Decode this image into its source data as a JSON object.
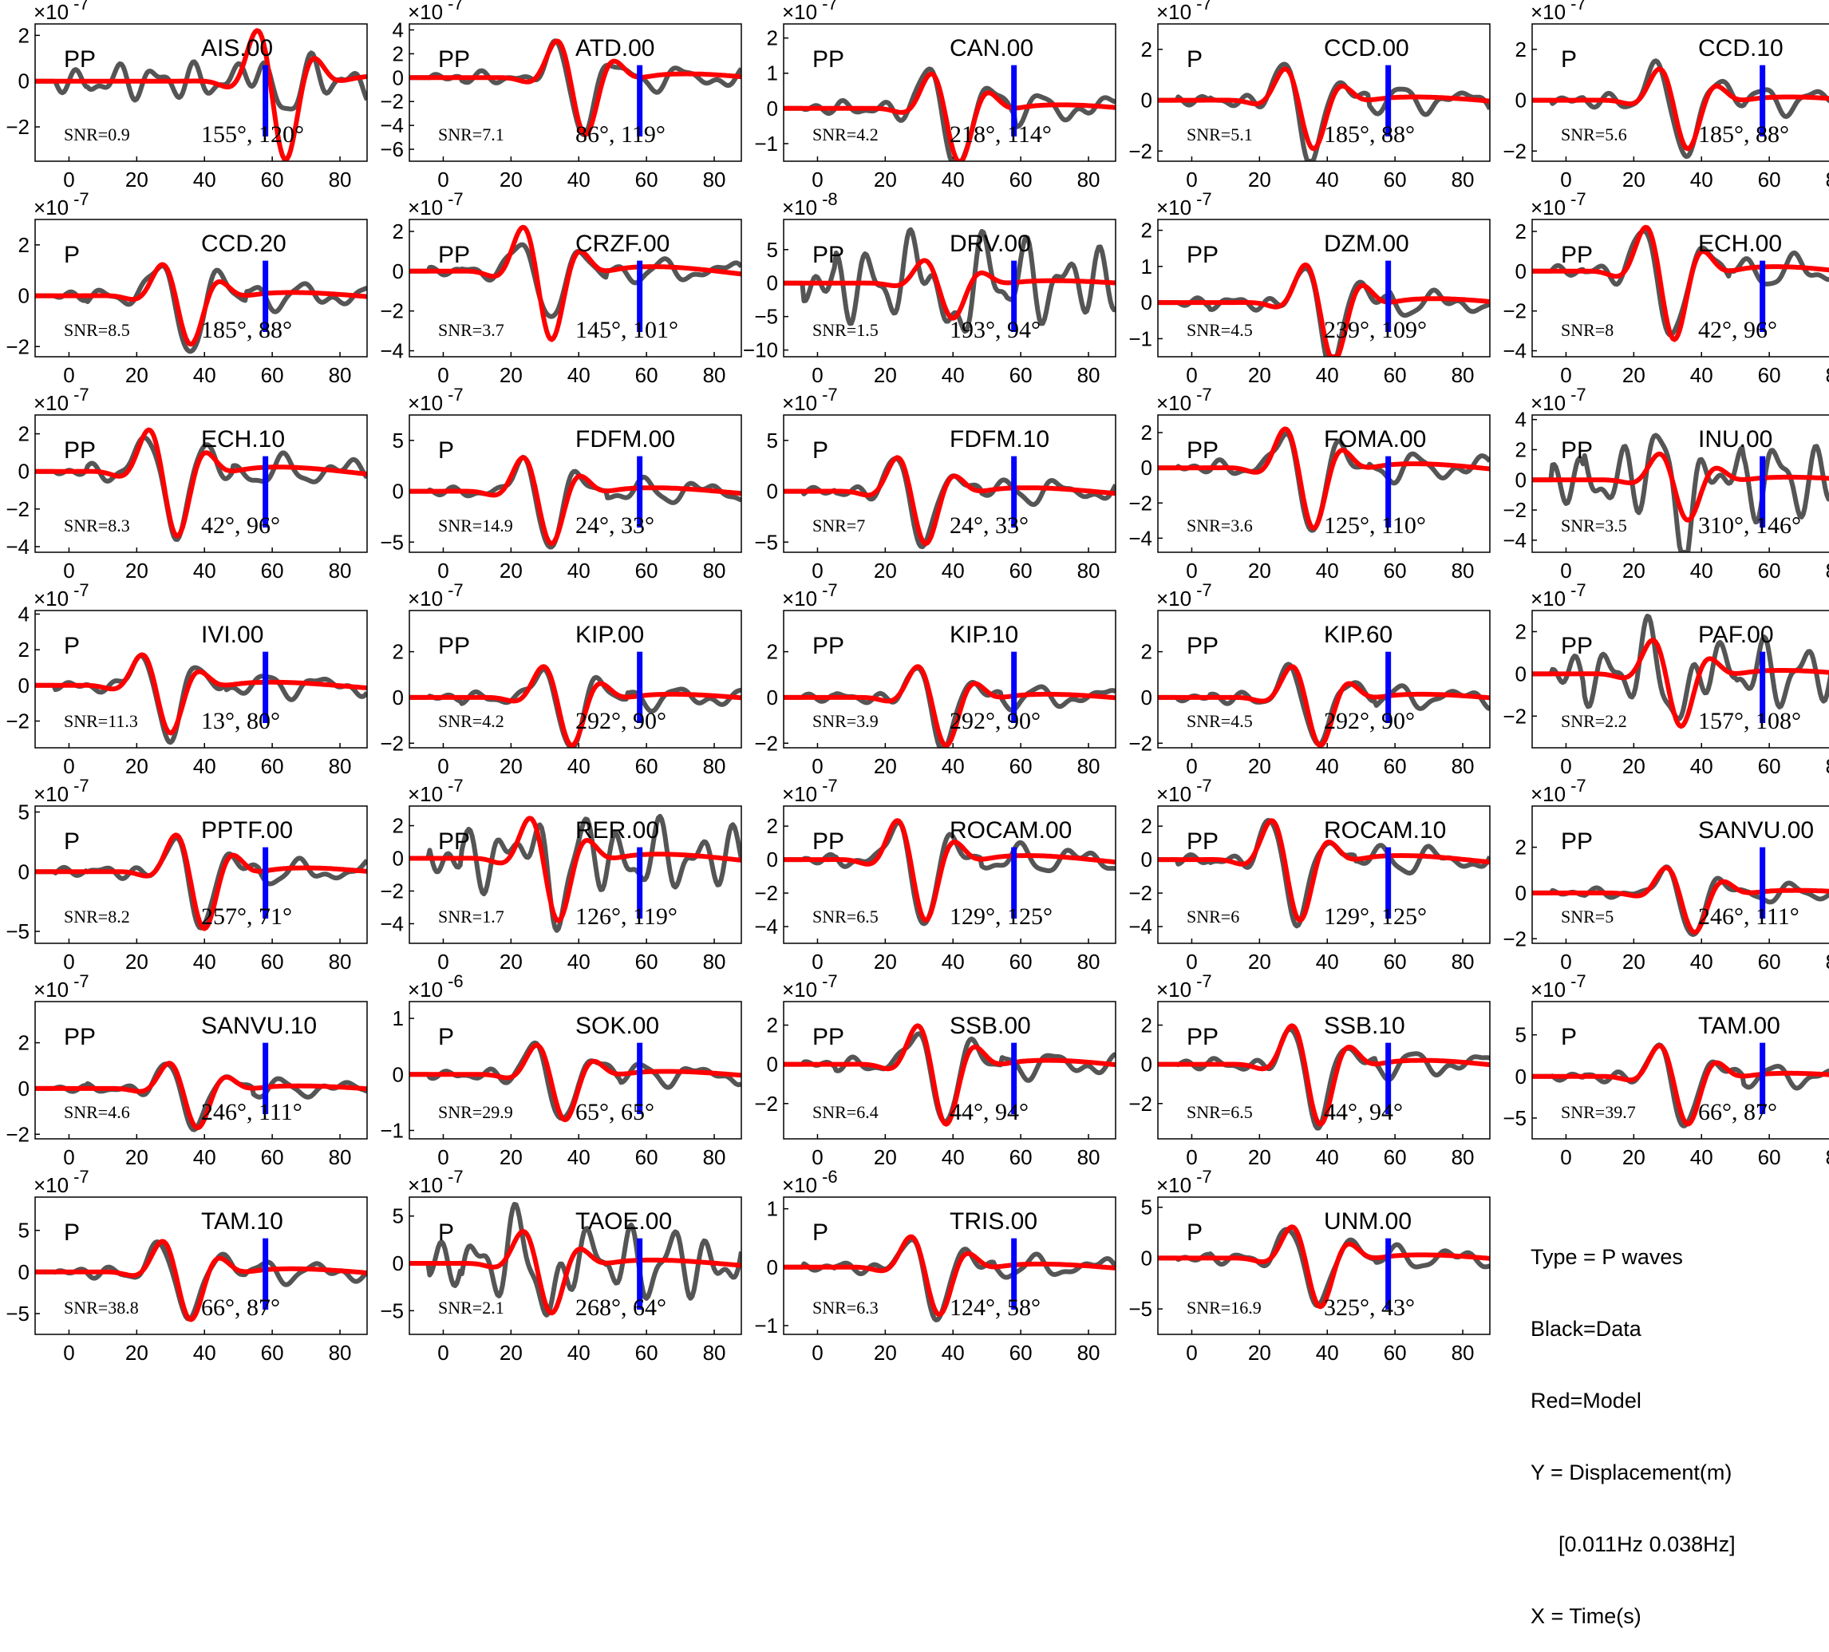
{
  "chart_data": {
    "type": "line",
    "xlim": [
      -10,
      88
    ],
    "x_ticks": [
      0,
      20,
      40,
      60,
      80
    ],
    "marker_x": 58,
    "colors": {
      "data": "#555555",
      "model": "#ff0000",
      "marker": "#0000ff"
    },
    "legend": {
      "type": "Type = P waves",
      "data": "Black=Data",
      "model": "Red=Model",
      "yaxis": "Y = Displacement(m)",
      "band": "[0.011Hz 0.038Hz]",
      "xaxis": "X = Time(s)"
    },
    "panels": [
      {
        "station": "AIS.00",
        "phase": "PP",
        "snr": "SNR=0.9",
        "angles": "155°, 120°",
        "exp": "×10",
        "exp_power": "-7",
        "ylim": [
          -3.5,
          2.5
        ],
        "y_ticks": [
          2,
          0,
          -2
        ],
        "data_amp": 1.2,
        "model_amp": 3.6,
        "t0": 50,
        "shape": "noisy"
      },
      {
        "station": "ATD.00",
        "phase": "PP",
        "snr": "SNR=7.1",
        "angles": "86°, 119°",
        "exp": "×10",
        "exp_power": "-7",
        "ylim": [
          -7,
          4.5
        ],
        "y_ticks": [
          4,
          2,
          0,
          -2,
          -4,
          -6
        ],
        "data_amp": 4.6,
        "model_amp": 5.0,
        "t0": 28,
        "shape": "std"
      },
      {
        "station": "CAN.00",
        "phase": "PP",
        "snr": "SNR=4.2",
        "angles": "218°, 114°",
        "exp": "×10",
        "exp_power": "-7",
        "ylim": [
          -1.5,
          2.4
        ],
        "y_ticks": [
          2,
          1,
          0,
          -1
        ],
        "data_amp": 1.9,
        "model_amp": 1.6,
        "t0": 28,
        "shape": "std"
      },
      {
        "station": "CCD.00",
        "phase": "P",
        "snr": "SNR=5.1",
        "angles": "185°, 88°",
        "exp": "×10",
        "exp_power": "-7",
        "ylim": [
          -2.4,
          3.0
        ],
        "y_ticks": [
          2,
          0,
          -2
        ],
        "data_amp": 2.4,
        "model_amp": 2.0,
        "t0": 22,
        "shape": "std"
      },
      {
        "station": "CCD.10",
        "phase": "P",
        "snr": "SNR=5.6",
        "angles": "185°, 88°",
        "exp": "×10",
        "exp_power": "-7",
        "ylim": [
          -2.4,
          3.0
        ],
        "y_ticks": [
          2,
          0,
          -2
        ],
        "data_amp": 2.4,
        "model_amp": 2.0,
        "t0": 22,
        "shape": "std"
      },
      {
        "station": "CCD.20",
        "phase": "P",
        "snr": "SNR=8.5",
        "angles": "185°, 88°",
        "exp": "×10",
        "exp_power": "-7",
        "ylim": [
          -2.4,
          3.0
        ],
        "y_ticks": [
          2,
          0,
          -2
        ],
        "data_amp": 2.4,
        "model_amp": 2.0,
        "t0": 22,
        "shape": "std"
      },
      {
        "station": "CRZF.00",
        "phase": "PP",
        "snr": "SNR=3.7",
        "angles": "145°, 101°",
        "exp": "×10",
        "exp_power": "-7",
        "ylim": [
          -4.3,
          2.6
        ],
        "y_ticks": [
          2,
          0,
          -2,
          -4
        ],
        "data_amp": 2.6,
        "model_amp": 3.6,
        "t0": 18,
        "shape": "std"
      },
      {
        "station": "DRV.00",
        "phase": "PP",
        "snr": "SNR=1.5",
        "angles": "193°, 94°",
        "exp": "×10",
        "exp_power": "-8",
        "ylim": [
          -11,
          9.5
        ],
        "y_ticks": [
          5,
          0,
          -5,
          -10
        ],
        "data_amp": 8.5,
        "model_amp": 5.5,
        "t0": 26,
        "shape": "noisy"
      },
      {
        "station": "DZM.00",
        "phase": "PP",
        "snr": "SNR=4.5",
        "angles": "239°, 109°",
        "exp": "×10",
        "exp_power": "-7",
        "ylim": [
          -1.5,
          2.3
        ],
        "y_ticks": [
          2,
          1,
          0,
          -1
        ],
        "data_amp": 1.7,
        "model_amp": 1.7,
        "t0": 28,
        "shape": "std"
      },
      {
        "station": "ECH.00",
        "phase": "PP",
        "snr": "SNR=8",
        "angles": "42°, 96°",
        "exp": "×10",
        "exp_power": "-7",
        "ylim": [
          -4.3,
          2.6
        ],
        "y_ticks": [
          2,
          0,
          -2,
          -4
        ],
        "data_amp": 3.6,
        "model_amp": 3.6,
        "t0": 18,
        "shape": "std"
      },
      {
        "station": "ECH.10",
        "phase": "PP",
        "snr": "SNR=8.3",
        "angles": "42°, 96°",
        "exp": "×10",
        "exp_power": "-7",
        "ylim": [
          -4.3,
          3.0
        ],
        "y_ticks": [
          2,
          0,
          -2,
          -4
        ],
        "data_amp": 3.6,
        "model_amp": 3.6,
        "t0": 18,
        "shape": "std"
      },
      {
        "station": "FDFM.00",
        "phase": "P",
        "snr": "SNR=14.9",
        "angles": "24°, 33°",
        "exp": "×10",
        "exp_power": "-7",
        "ylim": [
          -6,
          7.5
        ],
        "y_ticks": [
          5,
          0,
          -5
        ],
        "data_amp": 5.4,
        "model_amp": 5.4,
        "t0": 18,
        "shape": "std"
      },
      {
        "station": "FDFM.10",
        "phase": "P",
        "snr": "SNR=7",
        "angles": "24°, 33°",
        "exp": "×10",
        "exp_power": "-7",
        "ylim": [
          -6,
          7.5
        ],
        "y_ticks": [
          5,
          0,
          -5
        ],
        "data_amp": 5.4,
        "model_amp": 5.4,
        "t0": 18,
        "shape": "std"
      },
      {
        "station": "FOMA.00",
        "phase": "PP",
        "snr": "SNR=3.6",
        "angles": "125°, 110°",
        "exp": "×10",
        "exp_power": "-7",
        "ylim": [
          -4.8,
          3.0
        ],
        "y_ticks": [
          2,
          0,
          -2,
          -4
        ],
        "data_amp": 3.6,
        "model_amp": 3.6,
        "t0": 22,
        "shape": "std"
      },
      {
        "station": "INU.00",
        "phase": "PP",
        "snr": "SNR=3.5",
        "angles": "310°, 146°",
        "exp": "×10",
        "exp_power": "-7",
        "ylim": [
          -4.8,
          4.3
        ],
        "y_ticks": [
          4,
          2,
          0,
          -2,
          -4
        ],
        "data_amp": 3.6,
        "model_amp": 2.8,
        "t0": 22,
        "shape": "noisy"
      },
      {
        "station": "IVI.00",
        "phase": "P",
        "snr": "SNR=11.3",
        "angles": "13°, 80°",
        "exp": "×10",
        "exp_power": "-7",
        "ylim": [
          -3.5,
          4.2
        ],
        "y_ticks": [
          4,
          2,
          0,
          -2
        ],
        "data_amp": 3.0,
        "model_amp": 2.8,
        "t0": 16,
        "shape": "std"
      },
      {
        "station": "KIP.00",
        "phase": "PP",
        "snr": "SNR=4.2",
        "angles": "292°, 90°",
        "exp": "×10",
        "exp_power": "-7",
        "ylim": [
          -2.2,
          3.8
        ],
        "y_ticks": [
          2,
          0,
          -2
        ],
        "data_amp": 2.2,
        "model_amp": 2.2,
        "t0": 24,
        "shape": "std"
      },
      {
        "station": "KIP.10",
        "phase": "PP",
        "snr": "SNR=3.9",
        "angles": "292°, 90°",
        "exp": "×10",
        "exp_power": "-7",
        "ylim": [
          -2.2,
          3.8
        ],
        "y_ticks": [
          2,
          0,
          -2
        ],
        "data_amp": 2.2,
        "model_amp": 2.2,
        "t0": 24,
        "shape": "std"
      },
      {
        "station": "KIP.60",
        "phase": "PP",
        "snr": "SNR=4.5",
        "angles": "292°, 90°",
        "exp": "×10",
        "exp_power": "-7",
        "ylim": [
          -2.2,
          3.8
        ],
        "y_ticks": [
          2,
          0,
          -2
        ],
        "data_amp": 2.2,
        "model_amp": 2.2,
        "t0": 24,
        "shape": "std"
      },
      {
        "station": "PAF.00",
        "phase": "PP",
        "snr": "SNR=2.2",
        "angles": "157°, 108°",
        "exp": "×10",
        "exp_power": "-7",
        "ylim": [
          -3.5,
          3.0
        ],
        "y_ticks": [
          2,
          0,
          -2
        ],
        "data_amp": 2.2,
        "model_amp": 2.6,
        "t0": 20,
        "shape": "noisy"
      },
      {
        "station": "PPTF.00",
        "phase": "P",
        "snr": "SNR=8.2",
        "angles": "257°, 71°",
        "exp": "×10",
        "exp_power": "-7",
        "ylim": [
          -6,
          5.5
        ],
        "y_ticks": [
          5,
          0,
          -5
        ],
        "data_amp": 4.6,
        "model_amp": 5.0,
        "t0": 26,
        "shape": "std"
      },
      {
        "station": "RER.00",
        "phase": "PP",
        "snr": "SNR=1.7",
        "angles": "126°, 119°",
        "exp": "×10",
        "exp_power": "-7",
        "ylim": [
          -5.2,
          3.2
        ],
        "y_ticks": [
          2,
          0,
          -2,
          -4
        ],
        "data_amp": 3.0,
        "model_amp": 4.0,
        "t0": 20,
        "shape": "noisy"
      },
      {
        "station": "ROCAM.00",
        "phase": "PP",
        "snr": "SNR=6.5",
        "angles": "129°, 125°",
        "exp": "×10",
        "exp_power": "-7",
        "ylim": [
          -5.0,
          3.2
        ],
        "y_ticks": [
          2,
          0,
          -2,
          -4
        ],
        "data_amp": 3.8,
        "model_amp": 3.8,
        "t0": 18,
        "shape": "std"
      },
      {
        "station": "ROCAM.10",
        "phase": "PP",
        "snr": "SNR=6",
        "angles": "129°, 125°",
        "exp": "×10",
        "exp_power": "-7",
        "ylim": [
          -5.0,
          3.2
        ],
        "y_ticks": [
          2,
          0,
          -2,
          -4
        ],
        "data_amp": 3.8,
        "model_amp": 3.8,
        "t0": 18,
        "shape": "std"
      },
      {
        "station": "SANVU.00",
        "phase": "PP",
        "snr": "SNR=5",
        "angles": "246°, 111°",
        "exp": "×10",
        "exp_power": "-7",
        "ylim": [
          -2.2,
          3.8
        ],
        "y_ticks": [
          2,
          0,
          -2
        ],
        "data_amp": 1.8,
        "model_amp": 1.8,
        "t0": 24,
        "shape": "std"
      },
      {
        "station": "SANVU.10",
        "phase": "PP",
        "snr": "SNR=4.6",
        "angles": "246°, 111°",
        "exp": "×10",
        "exp_power": "-7",
        "ylim": [
          -2.2,
          3.8
        ],
        "y_ticks": [
          2,
          0,
          -2
        ],
        "data_amp": 1.8,
        "model_amp": 1.8,
        "t0": 24,
        "shape": "std"
      },
      {
        "station": "SOK.00",
        "phase": "P",
        "snr": "SNR=29.9",
        "angles": "65°, 65°",
        "exp": "×10",
        "exp_power": "-6",
        "ylim": [
          -1.15,
          1.3
        ],
        "y_ticks": [
          1,
          0,
          -1
        ],
        "data_amp": 0.9,
        "model_amp": 0.85,
        "t0": 22,
        "shape": "std"
      },
      {
        "station": "SSB.00",
        "phase": "PP",
        "snr": "SNR=6.4",
        "angles": "44°, 94°",
        "exp": "×10",
        "exp_power": "-7",
        "ylim": [
          -3.8,
          3.2
        ],
        "y_ticks": [
          2,
          0,
          -2
        ],
        "data_amp": 3.0,
        "model_amp": 3.2,
        "t0": 24,
        "shape": "std"
      },
      {
        "station": "SSB.10",
        "phase": "PP",
        "snr": "SNR=6.5",
        "angles": "44°, 94°",
        "exp": "×10",
        "exp_power": "-7",
        "ylim": [
          -3.8,
          3.2
        ],
        "y_ticks": [
          2,
          0,
          -2
        ],
        "data_amp": 3.0,
        "model_amp": 3.2,
        "t0": 24,
        "shape": "std"
      },
      {
        "station": "TAM.00",
        "phase": "P",
        "snr": "SNR=39.7",
        "angles": "66°, 87°",
        "exp": "×10",
        "exp_power": "-7",
        "ylim": [
          -7.5,
          9.0
        ],
        "y_ticks": [
          5,
          0,
          -5
        ],
        "data_amp": 6.0,
        "model_amp": 6.0,
        "t0": 22,
        "shape": "std"
      },
      {
        "station": "TAM.10",
        "phase": "P",
        "snr": "SNR=38.8",
        "angles": "66°, 87°",
        "exp": "×10",
        "exp_power": "-7",
        "ylim": [
          -7.5,
          9.0
        ],
        "y_ticks": [
          5,
          0,
          -5
        ],
        "data_amp": 6.0,
        "model_amp": 6.0,
        "t0": 22,
        "shape": "std"
      },
      {
        "station": "TAOE.00",
        "phase": "P",
        "snr": "SNR=2.1",
        "angles": "268°, 64°",
        "exp": "×10",
        "exp_power": "-7",
        "ylim": [
          -7.5,
          7.0
        ],
        "y_ticks": [
          5,
          0,
          -5
        ],
        "data_amp": 5.5,
        "model_amp": 5.5,
        "t0": 18,
        "shape": "noisy"
      },
      {
        "station": "TRIS.00",
        "phase": "P",
        "snr": "SNR=6.3",
        "angles": "124°, 58°",
        "exp": "×10",
        "exp_power": "-6",
        "ylim": [
          -1.15,
          1.2
        ],
        "y_ticks": [
          1,
          0,
          -1
        ],
        "data_amp": 0.85,
        "model_amp": 0.85,
        "t0": 22,
        "shape": "std"
      },
      {
        "station": "UNM.00",
        "phase": "P",
        "snr": "SNR=16.9",
        "angles": "325°, 43°",
        "exp": "×10",
        "exp_power": "-7",
        "ylim": [
          -7.5,
          6.0
        ],
        "y_ticks": [
          5,
          0,
          -5
        ],
        "data_amp": 5.0,
        "model_amp": 5.0,
        "t0": 24,
        "shape": "std"
      }
    ]
  }
}
